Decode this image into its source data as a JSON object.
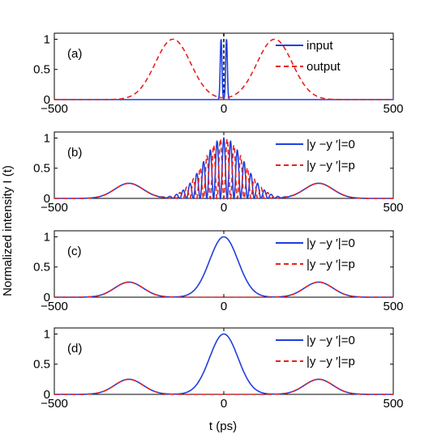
{
  "figure": {
    "ylabel": "Normalized intensity I (t)",
    "xlabel": "t (ps)"
  },
  "colors": {
    "blue": "#1f3fe0",
    "red": "#e8211d",
    "dashed_blue": "#3344e6"
  },
  "chart_data": [
    {
      "type": "line",
      "panel_label": "(a)",
      "xlim": [
        -500,
        500
      ],
      "ylim": [
        0,
        1.1
      ],
      "xticks": [
        "-500",
        "0",
        "500"
      ],
      "yticks": [
        "0",
        "0.5",
        "1"
      ],
      "center_marker": "dashed-vertical-line-at-0",
      "legend_position": "top-right",
      "series": [
        {
          "name": "input",
          "style": "solid",
          "color": "#1f3fe0",
          "x": [
            -500,
            -20,
            -14,
            -10,
            -8,
            -5,
            -2,
            0,
            2,
            5,
            8,
            10,
            14,
            20,
            500
          ],
          "y": [
            0,
            0,
            0.05,
            0.6,
            1.0,
            0.6,
            0.05,
            0,
            0.05,
            0.6,
            1.0,
            0.6,
            0.05,
            0,
            0
          ]
        },
        {
          "name": "output",
          "style": "dashed",
          "color": "#e8211d",
          "x": [
            -500,
            -300,
            -250,
            -200,
            -175,
            -150,
            -125,
            -100,
            -75,
            -50,
            -25,
            0,
            25,
            50,
            75,
            100,
            125,
            150,
            175,
            200,
            250,
            300,
            500
          ],
          "y": [
            0,
            0,
            0.08,
            0.55,
            0.85,
            1.0,
            0.85,
            0.55,
            0.25,
            0.08,
            0.02,
            0,
            0.02,
            0.08,
            0.25,
            0.55,
            0.85,
            1.0,
            0.85,
            0.55,
            0.08,
            0,
            0
          ]
        }
      ]
    },
    {
      "type": "line",
      "panel_label": "(b)",
      "xlim": [
        -500,
        500
      ],
      "ylim": [
        0,
        1.1
      ],
      "xticks": [
        "-500",
        "0",
        "500"
      ],
      "yticks": [
        "0",
        "0.5",
        "1"
      ],
      "legend_position": "top-right",
      "series": [
        {
          "name": "|y −y ′|=0",
          "style": "solid",
          "color": "#1f3fe0",
          "description_values": {
            "side_peak_x": [
              -280,
              280
            ],
            "side_peak_y": 0.25,
            "central_envelope_peak": 1.0,
            "central_envelope_width_ps": 120,
            "fringe_period_ps": 20
          }
        },
        {
          "name": "|y −y ′|=p",
          "style": "dashed",
          "color": "#e8211d",
          "description_values": {
            "side_peak_x": [
              -280,
              280
            ],
            "side_peak_y": 0.25,
            "central_envelope_peak": 1.0,
            "fringe_phase": "shifted by pi"
          }
        }
      ]
    },
    {
      "type": "line",
      "panel_label": "(c)",
      "xlim": [
        -500,
        500
      ],
      "ylim": [
        0,
        1.1
      ],
      "xticks": [
        "-500",
        "0",
        "500"
      ],
      "yticks": [
        "0",
        "0.5",
        "1"
      ],
      "legend_position": "top-right",
      "series": [
        {
          "name": "|y −y ′|=0",
          "style": "solid",
          "color": "#1f3fe0",
          "x": [
            -500,
            -400,
            -350,
            -300,
            -280,
            -250,
            -200,
            -150,
            -100,
            -75,
            -50,
            -25,
            0,
            25,
            50,
            75,
            100,
            150,
            200,
            250,
            280,
            300,
            350,
            400,
            500
          ],
          "y": [
            0,
            0.01,
            0.07,
            0.22,
            0.25,
            0.21,
            0.06,
            0.02,
            0.12,
            0.3,
            0.6,
            0.88,
            1.0,
            0.88,
            0.6,
            0.3,
            0.12,
            0.02,
            0.06,
            0.21,
            0.25,
            0.22,
            0.07,
            0.01,
            0
          ]
        },
        {
          "name": "|y −y ′|=p",
          "style": "dashed",
          "color": "#e8211d",
          "x": [
            -500,
            -400,
            -350,
            -300,
            -280,
            -250,
            -200,
            -150,
            -100,
            0,
            100,
            150,
            200,
            250,
            280,
            300,
            350,
            400,
            500
          ],
          "y": [
            0,
            0.01,
            0.07,
            0.22,
            0.25,
            0.21,
            0.06,
            0.01,
            0,
            0,
            0,
            0.01,
            0.06,
            0.21,
            0.25,
            0.22,
            0.07,
            0.01,
            0
          ]
        }
      ]
    },
    {
      "type": "line",
      "panel_label": "(d)",
      "xlim": [
        -500,
        500
      ],
      "ylim": [
        0,
        1.1
      ],
      "xticks": [
        "-500",
        "0",
        "500"
      ],
      "yticks": [
        "0",
        "0.5",
        "1"
      ],
      "legend_position": "top-right",
      "series": [
        {
          "name": "|y −y ′|=0",
          "style": "solid",
          "color": "#1f3fe0",
          "x": [
            -500,
            -400,
            -350,
            -300,
            -280,
            -250,
            -200,
            -150,
            -100,
            -75,
            -50,
            -25,
            0,
            25,
            50,
            75,
            100,
            150,
            200,
            250,
            280,
            300,
            350,
            400,
            500
          ],
          "y": [
            0,
            0.01,
            0.07,
            0.22,
            0.25,
            0.21,
            0.06,
            0.02,
            0.12,
            0.3,
            0.6,
            0.88,
            1.0,
            0.88,
            0.6,
            0.3,
            0.12,
            0.02,
            0.06,
            0.21,
            0.25,
            0.22,
            0.07,
            0.01,
            0
          ]
        },
        {
          "name": "|y −y ′|=p",
          "style": "dashed",
          "color": "#e8211d",
          "x": [
            -500,
            -400,
            -350,
            -300,
            -280,
            -250,
            -200,
            -150,
            -100,
            0,
            100,
            150,
            200,
            250,
            280,
            300,
            350,
            400,
            500
          ],
          "y": [
            0,
            0.01,
            0.07,
            0.22,
            0.25,
            0.21,
            0.06,
            0.01,
            0,
            0,
            0,
            0.01,
            0.06,
            0.21,
            0.25,
            0.22,
            0.07,
            0.01,
            0
          ]
        }
      ]
    }
  ]
}
